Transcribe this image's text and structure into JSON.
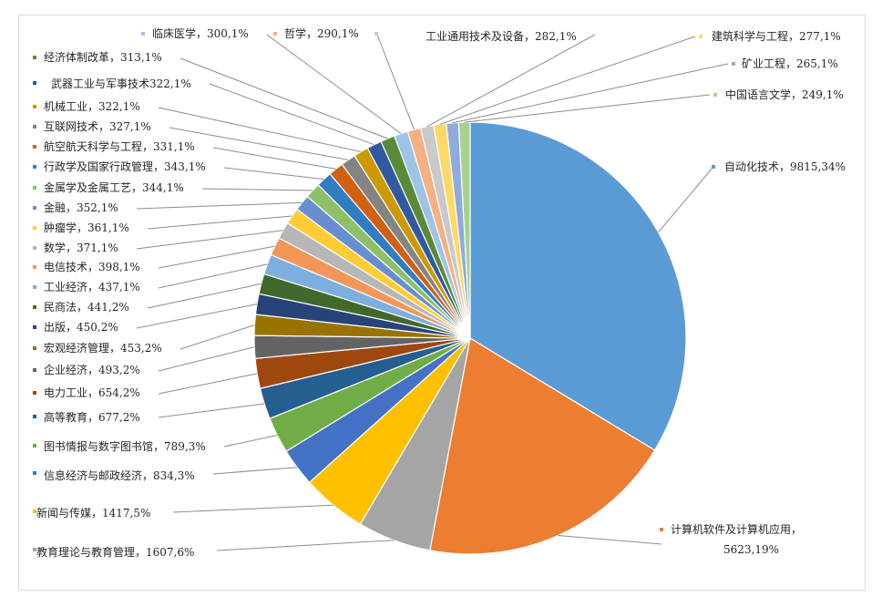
{
  "chart_data": {
    "type": "pie",
    "title": "",
    "legend": "none",
    "slices": [
      {
        "label": "自动化技术，9815,34%",
        "value": 9815,
        "color": "#5b9bd5"
      },
      {
        "label": "计算机软件及计算机应用，5623,19%",
        "label_lines": [
          "计算机软件及计算机应用，",
          "5623,19%"
        ],
        "value": 5623,
        "color": "#ed7d31"
      },
      {
        "label": "教育理论与教育管理，1607,6%",
        "value": 1607,
        "color": "#a5a5a5"
      },
      {
        "label": "新闻与传媒，1417,5%",
        "value": 1417,
        "color": "#ffc000"
      },
      {
        "label": "信息经济与邮政经济，834,3%",
        "value": 834,
        "color": "#4472c4"
      },
      {
        "label": "图书情报与数字图书馆，789,3%",
        "value": 789,
        "color": "#70ad47"
      },
      {
        "label": "高等教育，677,2%",
        "value": 677,
        "color": "#255e91"
      },
      {
        "label": "电力工业，654,2%",
        "value": 654,
        "color": "#9e480e"
      },
      {
        "label": "企业经济，493,2%",
        "value": 493,
        "color": "#636363"
      },
      {
        "label": "宏观经济管理，453,2%",
        "value": 453,
        "color": "#997300"
      },
      {
        "label": "出版，450,2%",
        "value": 450,
        "color": "#264478"
      },
      {
        "label": "民商法，441,2%",
        "value": 441,
        "color": "#43682b"
      },
      {
        "label": "工业经济，437,1%",
        "value": 437,
        "color": "#7cafdd"
      },
      {
        "label": "电信技术，398,1%",
        "value": 398,
        "color": "#f1975a"
      },
      {
        "label": "数学，371,1%",
        "value": 371,
        "color": "#b7b7b7"
      },
      {
        "label": "肿瘤学，361,1%",
        "value": 361,
        "color": "#ffcd33"
      },
      {
        "label": "金融，352,1%",
        "value": 352,
        "color": "#698ed0"
      },
      {
        "label": "金属学及金属工艺，344,1%",
        "value": 344,
        "color": "#8cc168"
      },
      {
        "label": "行政学及国家行政管理，343,1%",
        "value": 343,
        "color": "#327dc2"
      },
      {
        "label": "航空航天科学与工程，331,1%",
        "value": 331,
        "color": "#d26012"
      },
      {
        "label": "互联网技术，327,1%",
        "value": 327,
        "color": "#848484"
      },
      {
        "label": "机械工业，322,1%",
        "value": 322,
        "color": "#cc9a00"
      },
      {
        "label": "武器工业与军事技术322,1%",
        "value": 322,
        "color": "#335aa1"
      },
      {
        "label": "经济体制改革，313,1%",
        "value": 313,
        "color": "#5a8a39"
      },
      {
        "label": "临床医学，300,1%",
        "value": 300,
        "color": "#9dc3e6"
      },
      {
        "label": "哲学，290,1%",
        "value": 290,
        "color": "#f4b183"
      },
      {
        "label": "工业通用技术及设备，282,1%",
        "value": 282,
        "color": "#c9c9c9"
      },
      {
        "label": "建筑科学与工程，277,1%",
        "value": 277,
        "color": "#ffd966"
      },
      {
        "label": "矿业工程，265,1%",
        "value": 265,
        "color": "#8faadc"
      },
      {
        "label": "中国语言文学，249,1%",
        "value": 249,
        "color": "#a9d18e"
      }
    ]
  }
}
